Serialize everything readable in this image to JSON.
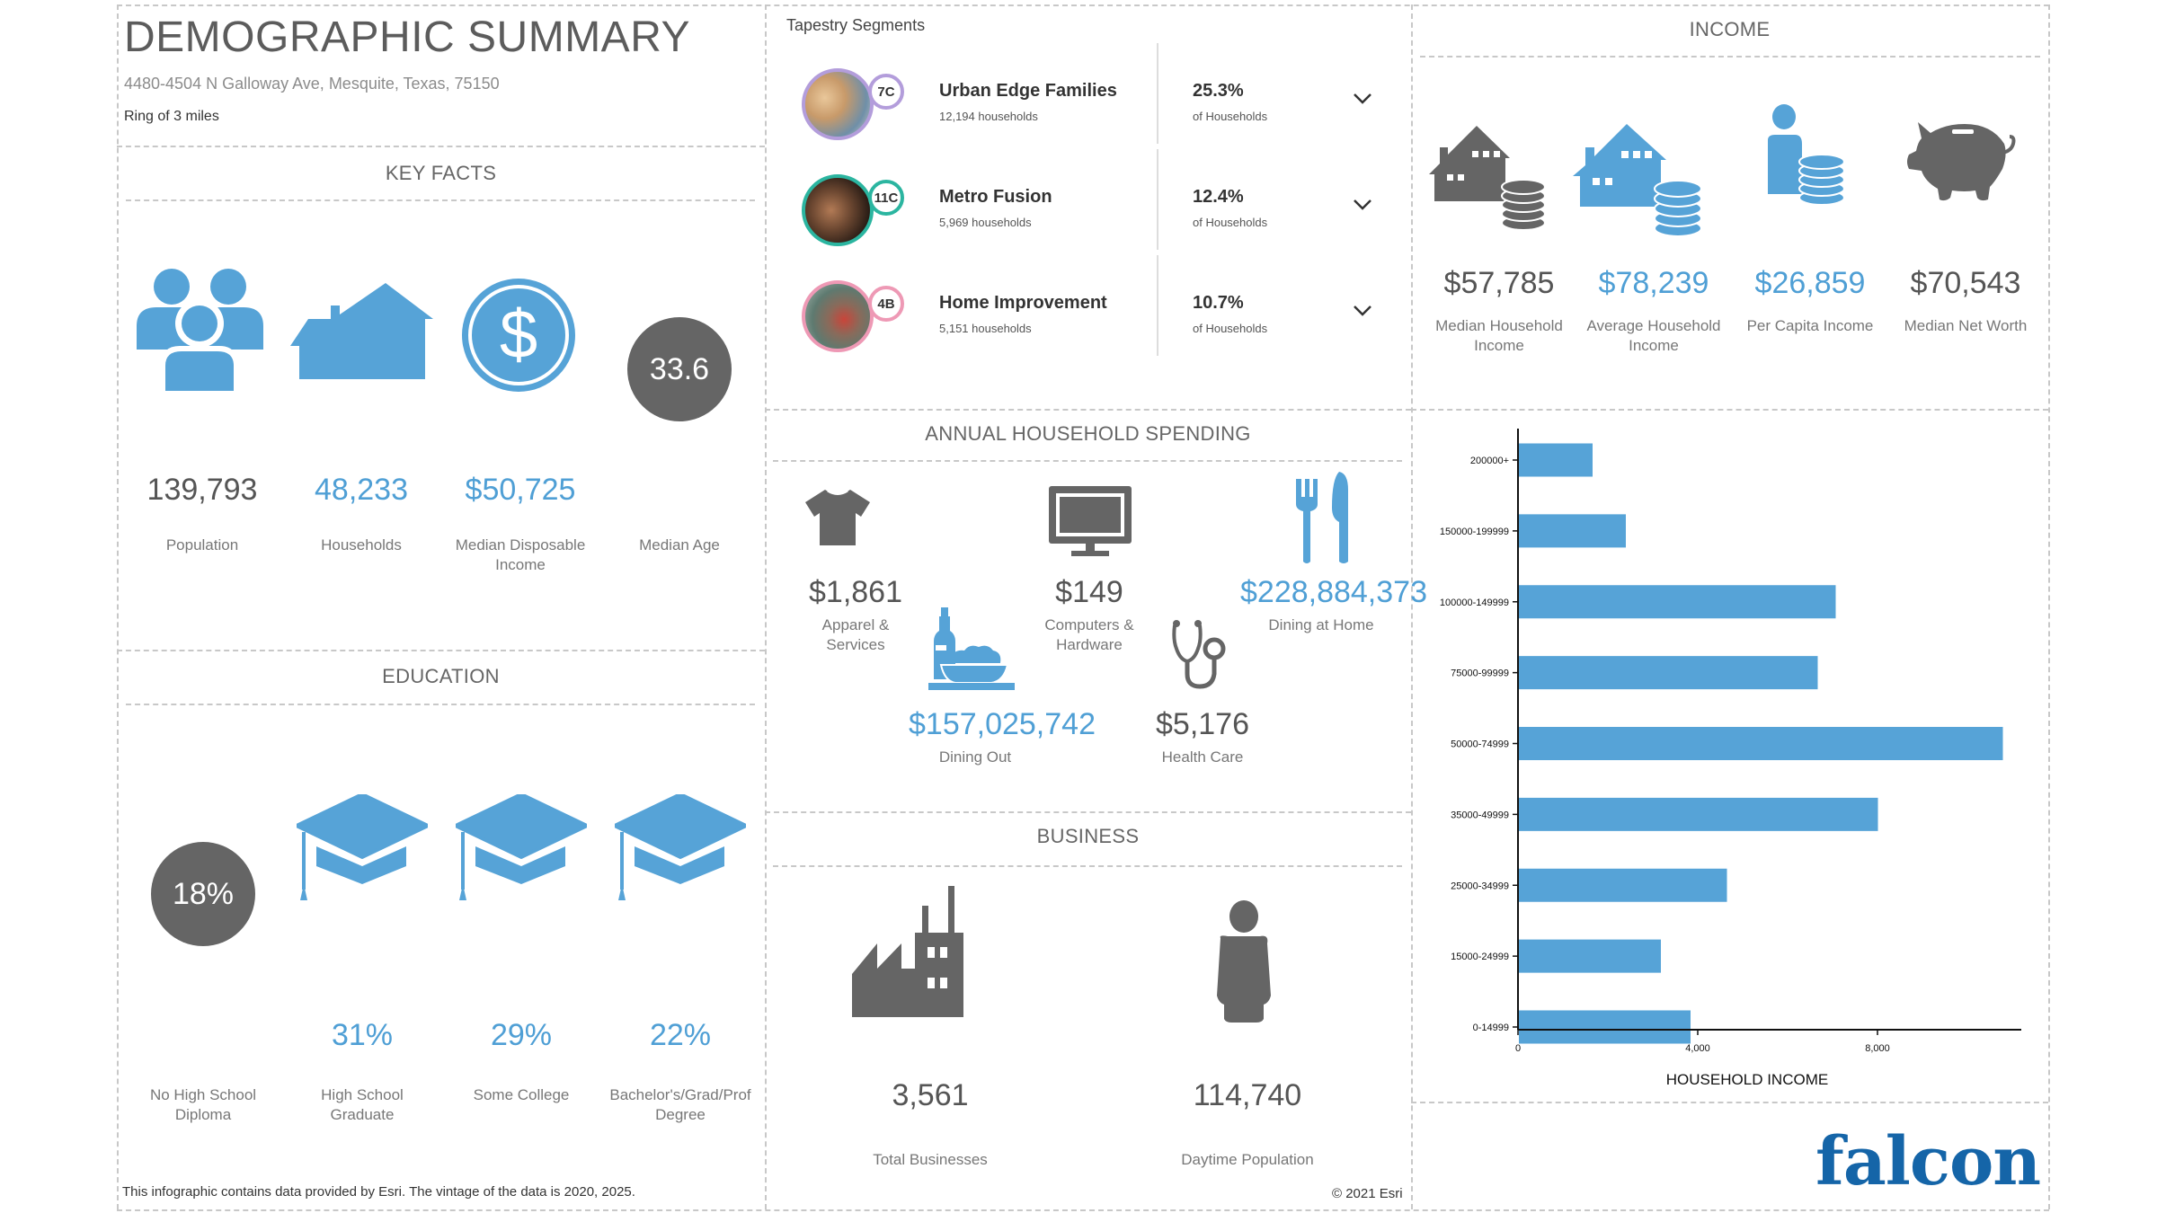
{
  "header": {
    "title": "DEMOGRAPHIC SUMMARY",
    "address": "4480-4504 N Galloway Ave, Mesquite, Texas, 75150",
    "ring": "Ring of 3 miles"
  },
  "key_facts": {
    "title": "KEY FACTS",
    "items": [
      {
        "icon": "people-icon",
        "value": "139,793",
        "label": "Population"
      },
      {
        "icon": "house-icon",
        "value": "48,233",
        "label": "Households"
      },
      {
        "icon": "dollar-coin-icon",
        "value": "$50,725",
        "label": "Median Disposable Income"
      },
      {
        "icon": "age-circle",
        "value": "33.6",
        "label": "Median Age"
      }
    ]
  },
  "education": {
    "title": "EDUCATION",
    "items": [
      {
        "value": "18%",
        "label": "No High School Diploma"
      },
      {
        "value": "31%",
        "label": "High School Graduate"
      },
      {
        "value": "29%",
        "label": "Some College"
      },
      {
        "value": "22%",
        "label": "Bachelor's/Grad/Prof Degree"
      }
    ]
  },
  "tapestry": {
    "title": "Tapestry Segments",
    "segments": [
      {
        "code": "7C",
        "name": "Urban Edge Families",
        "households": "12,194 households",
        "percent": "25.3%",
        "percent_label": "of Households",
        "color": "#b39ddb"
      },
      {
        "code": "11C",
        "name": "Metro Fusion",
        "households": "5,969 households",
        "percent": "12.4%",
        "percent_label": "of Households",
        "color": "#2bb5a0"
      },
      {
        "code": "4B",
        "name": "Home Improvement",
        "households": "5,151 households",
        "percent": "10.7%",
        "percent_label": "of Households",
        "color": "#ee99b5"
      }
    ]
  },
  "spending": {
    "title": "ANNUAL HOUSEHOLD SPENDING",
    "items": [
      {
        "icon": "tshirt-icon",
        "value": "$1,861",
        "label": "Apparel & Services"
      },
      {
        "icon": "computer-monitor-icon",
        "value": "$149",
        "label": "Computers & Hardware"
      },
      {
        "icon": "fork-knife-icon",
        "value": "$228,884,373",
        "label": "Dining at Home"
      },
      {
        "icon": "bottle-plate-icon",
        "value": "$157,025,742",
        "label": "Dining Out"
      },
      {
        "icon": "stethoscope-icon",
        "value": "$5,176",
        "label": "Health Care"
      }
    ]
  },
  "business": {
    "title": "BUSINESS",
    "items": [
      {
        "icon": "factory-icon",
        "value": "3,561",
        "label": "Total Businesses"
      },
      {
        "icon": "person-icon",
        "value": "114,740",
        "label": "Daytime Population"
      }
    ]
  },
  "income": {
    "title": "INCOME",
    "items": [
      {
        "icon": "house-coins-icon",
        "value": "$57,785",
        "label": "Median Household Income"
      },
      {
        "icon": "house-coins-icon",
        "value": "$78,239",
        "label": "Average Household Income"
      },
      {
        "icon": "person-coins-icon",
        "value": "$26,859",
        "label": "Per Capita Income"
      },
      {
        "icon": "piggy-bank-icon",
        "value": "$70,543",
        "label": "Median Net Worth"
      }
    ]
  },
  "footer": {
    "note": "This infographic contains data provided by Esri. The vintage of the data is 2020, 2025.",
    "copyright": "© 2021 Esri",
    "logo": "falcon"
  },
  "colors": {
    "accent_blue": "#4f9fd5",
    "icon_gray": "#656565",
    "logo_blue": "#1565a8"
  },
  "chart_data": {
    "type": "bar",
    "orientation": "horizontal",
    "title": "",
    "xlabel": "HOUSEHOLD INCOME",
    "ylabel": "",
    "categories": [
      "200000+",
      "150000-199999",
      "100000-149999",
      "75000-99999",
      "50000-74999",
      "35000-49999",
      "25000-34999",
      "15000-24999",
      "0-14999"
    ],
    "values": [
      1660,
      2400,
      7070,
      6670,
      10790,
      8010,
      4650,
      3180,
      3840
    ],
    "xlim": [
      0,
      11200
    ],
    "xticks": [
      0,
      4000,
      8000
    ],
    "xtick_labels": [
      "0",
      "4,000",
      "8,000"
    ],
    "grid": false,
    "legend": "none",
    "bar_color": "#56a3d7"
  }
}
